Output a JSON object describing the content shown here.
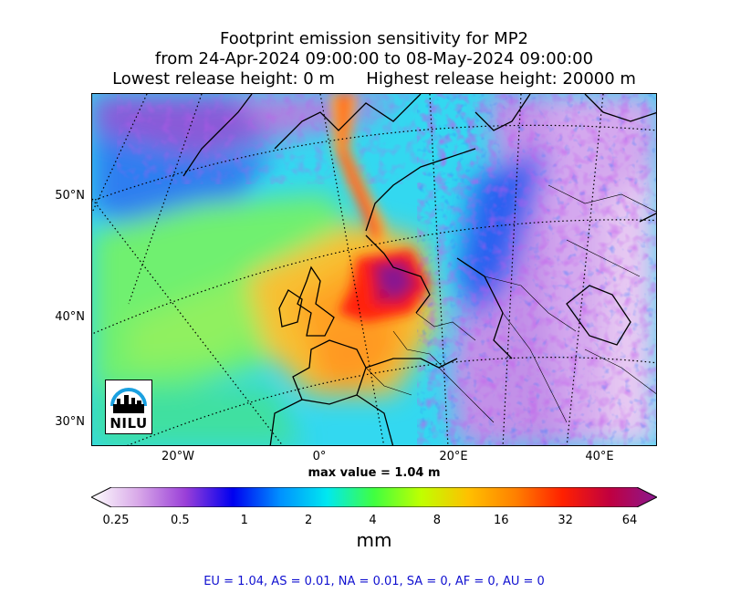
{
  "title": {
    "line1": "Footprint emission sensitivity for MP2",
    "line2": "from 24-Apr-2024 09:00:00 to 08-May-2024 09:00:00",
    "line3": "Lowest release height: 0 m      Highest release height: 20000 m"
  },
  "map": {
    "lat_labels": [
      "50°N",
      "40°N",
      "30°N"
    ],
    "lon_labels": [
      "20°W",
      "0°",
      "20°E",
      "40°E"
    ],
    "logo_text": "NILU",
    "max_value": "max value = 1.04 m"
  },
  "colorbar": {
    "ticks": [
      "0.25",
      "0.5",
      "1",
      "2",
      "4",
      "8",
      "16",
      "32",
      "64"
    ],
    "colors": [
      "#ffffff",
      "#d8a8e8",
      "#9a3fd8",
      "#0000f0",
      "#0090ff",
      "#00e8f0",
      "#40ff40",
      "#c0ff00",
      "#ffc000",
      "#ff8000",
      "#ff2000",
      "#c00040",
      "#8a1890"
    ],
    "unit": "mm"
  },
  "regions": "EU = 1.04,  AS = 0.01,  NA = 0.01,  SA = 0,  AF = 0,  AU = 0"
}
